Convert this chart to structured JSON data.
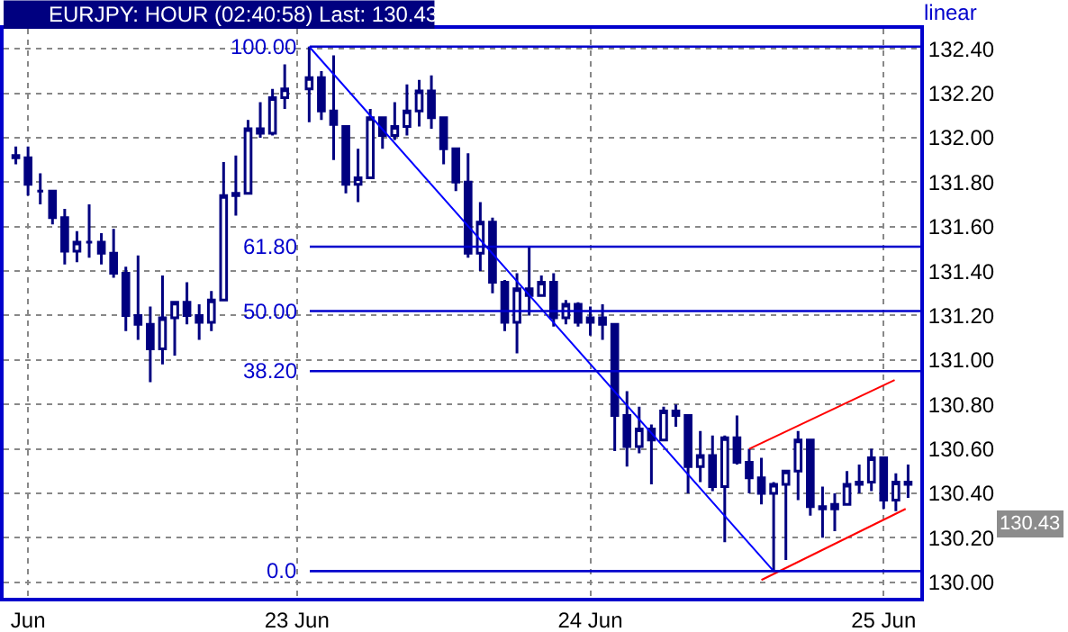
{
  "chart_data": {
    "type": "candlestick",
    "title": "EURJPY: HOUR (02:40:58) Last: 130.43",
    "annotations": [
      "linear",
      "130.43",
      "100.00",
      "61.80",
      "50.00",
      "38.20",
      "0.0"
    ],
    "xlim": [
      "--06-22T00:00",
      "--06-25T03:00"
    ],
    "xticks": [
      {
        "value": "--06-22T02:00",
        "label": "Jun"
      },
      {
        "value": "--06-23",
        "label": "23 Jun"
      },
      {
        "value": "--06-24",
        "label": "24 Jun"
      },
      {
        "value": "--06-25",
        "label": "25 Jun"
      }
    ],
    "ylim": [
      129.93,
      132.49
    ],
    "yticks": [
      {
        "value": 130.0,
        "label": "130.00"
      },
      {
        "value": 130.2,
        "label": "130.20"
      },
      {
        "value": 130.4,
        "label": "130.40"
      },
      {
        "value": 130.6,
        "label": "130.60"
      },
      {
        "value": 130.8,
        "label": "130.80"
      },
      {
        "value": 131.0,
        "label": "131.00"
      },
      {
        "value": 131.2,
        "label": "131.20"
      },
      {
        "value": 131.4,
        "label": "131.40"
      },
      {
        "value": 131.6,
        "label": "131.60"
      },
      {
        "value": 131.8,
        "label": "131.80"
      },
      {
        "value": 132.0,
        "label": "132.00"
      },
      {
        "value": 132.2,
        "label": "132.20"
      },
      {
        "value": 132.4,
        "label": "132.40"
      }
    ],
    "grid": true,
    "ref_lines": [
      {
        "axis": "y",
        "value": 132.41,
        "color": "#0000cc"
      },
      {
        "axis": "y",
        "value": 131.51,
        "color": "#0000cc"
      },
      {
        "axis": "y",
        "value": 131.22,
        "color": "#0000cc"
      },
      {
        "axis": "y",
        "value": 130.95,
        "color": "#0000cc"
      },
      {
        "axis": "y",
        "value": 130.05,
        "color": "#0000cc"
      }
    ],
    "series": [
      {
        "color": "#000080",
        "x": [
          "--06-22T01:00",
          "--06-22T02:00",
          "--06-22T03:00",
          "--06-22T04:00",
          "--06-22T05:00",
          "--06-22T06:00",
          "--06-22T07:00",
          "--06-22T08:00",
          "--06-22T09:00",
          "--06-22T10:00",
          "--06-22T11:00",
          "--06-22T12:00",
          "--06-22T13:00",
          "--06-22T14:00",
          "--06-22T15:00",
          "--06-22T16:00",
          "--06-22T17:00",
          "--06-22T18:00",
          "--06-22T19:00",
          "--06-22T20:00",
          "--06-22T21:00",
          "--06-22T22:00",
          "--06-22T23:00",
          "--06-23T01:00",
          "--06-23T02:00",
          "--06-23T03:00",
          "--06-23T04:00",
          "--06-23T05:00",
          "--06-23T06:00",
          "--06-23T07:00",
          "--06-23T08:00",
          "--06-23T09:00",
          "--06-23T10:00",
          "--06-23T11:00",
          "--06-23T12:00",
          "--06-23T13:00",
          "--06-23T14:00",
          "--06-23T15:00",
          "--06-23T16:00",
          "--06-23T17:00",
          "--06-23T18:00",
          "--06-23T19:00",
          "--06-23T20:00",
          "--06-23T21:00",
          "--06-23T22:00",
          "--06-23T23:00",
          "--06-24T00:00",
          "--06-24T01:00",
          "--06-24T02:00",
          "--06-24T03:00",
          "--06-24T04:00",
          "--06-24T05:00",
          "--06-24T06:00",
          "--06-24T07:00",
          "--06-24T08:00",
          "--06-24T09:00",
          "--06-24T10:00",
          "--06-24T11:00",
          "--06-24T12:00",
          "--06-24T13:00",
          "--06-24T14:00",
          "--06-24T15:00",
          "--06-24T16:00",
          "--06-24T17:00",
          "--06-24T18:00",
          "--06-24T19:00",
          "--06-24T20:00",
          "--06-24T21:00",
          "--06-24T22:00",
          "--06-24T23:00",
          "--06-25T00:00",
          "--06-25T01:00",
          "--06-25T02:00"
        ],
        "ohlc": [
          [
            131.92,
            131.96,
            131.88,
            131.91
          ],
          [
            131.91,
            131.96,
            131.74,
            131.79
          ],
          [
            131.76,
            131.84,
            131.7,
            131.76
          ],
          [
            131.76,
            131.76,
            131.61,
            131.64
          ],
          [
            131.64,
            131.68,
            131.43,
            131.49
          ],
          [
            131.49,
            131.58,
            131.44,
            131.53
          ],
          [
            131.53,
            131.7,
            131.46,
            131.53
          ],
          [
            131.53,
            131.57,
            131.43,
            131.48
          ],
          [
            131.48,
            131.59,
            131.37,
            131.39
          ],
          [
            131.39,
            131.42,
            131.13,
            131.2
          ],
          [
            131.2,
            131.47,
            131.09,
            131.16
          ],
          [
            131.16,
            131.24,
            130.9,
            131.05
          ],
          [
            131.05,
            131.38,
            130.98,
            131.19
          ],
          [
            131.19,
            131.26,
            131.02,
            131.26
          ],
          [
            131.26,
            131.35,
            131.16,
            131.2
          ],
          [
            131.2,
            131.25,
            131.09,
            131.17
          ],
          [
            131.17,
            131.31,
            131.13,
            131.27
          ],
          [
            131.27,
            131.89,
            131.27,
            131.74
          ],
          [
            131.74,
            131.92,
            131.65,
            131.75
          ],
          [
            131.75,
            132.08,
            131.75,
            132.04
          ],
          [
            132.04,
            132.16,
            132.0,
            132.02
          ],
          [
            132.02,
            132.22,
            132.01,
            132.18
          ],
          [
            132.18,
            132.33,
            132.13,
            132.22
          ],
          [
            132.22,
            132.41,
            132.07,
            132.27
          ],
          [
            132.27,
            132.3,
            132.08,
            132.12
          ],
          [
            132.12,
            132.37,
            131.9,
            132.06
          ],
          [
            132.05,
            132.05,
            131.75,
            131.79
          ],
          [
            131.79,
            131.95,
            131.71,
            131.82
          ],
          [
            131.82,
            132.13,
            131.82,
            132.09
          ],
          [
            132.09,
            132.09,
            131.95,
            132.01
          ],
          [
            132.01,
            132.16,
            131.99,
            132.05
          ],
          [
            132.05,
            132.24,
            132.01,
            132.12
          ],
          [
            132.12,
            132.26,
            132.05,
            132.21
          ],
          [
            132.21,
            132.28,
            132.04,
            132.09
          ],
          [
            132.09,
            132.09,
            131.88,
            131.95
          ],
          [
            131.95,
            131.95,
            131.76,
            131.8
          ],
          [
            131.8,
            131.93,
            131.46,
            131.48
          ],
          [
            131.48,
            131.71,
            131.4,
            131.62
          ],
          [
            131.62,
            131.64,
            131.3,
            131.35
          ],
          [
            131.35,
            131.36,
            131.13,
            131.17
          ],
          [
            131.17,
            131.39,
            131.03,
            131.32
          ],
          [
            131.32,
            131.51,
            131.2,
            131.29
          ],
          [
            131.29,
            131.38,
            131.29,
            131.35
          ],
          [
            131.35,
            131.39,
            131.15,
            131.19
          ],
          [
            131.19,
            131.27,
            131.16,
            131.25
          ],
          [
            131.25,
            131.26,
            131.15,
            131.17
          ],
          [
            131.17,
            131.24,
            131.11,
            131.19
          ],
          [
            131.19,
            131.25,
            131.09,
            131.16
          ],
          [
            131.16,
            131.16,
            130.59,
            130.75
          ],
          [
            130.75,
            130.86,
            130.52,
            130.61
          ],
          [
            130.61,
            130.79,
            130.58,
            130.69
          ],
          [
            130.69,
            130.71,
            130.44,
            130.64
          ],
          [
            130.64,
            130.79,
            130.64,
            130.77
          ],
          [
            130.77,
            130.8,
            130.7,
            130.75
          ],
          [
            130.75,
            130.75,
            130.4,
            130.52
          ],
          [
            130.52,
            130.68,
            130.45,
            130.57
          ],
          [
            130.57,
            130.66,
            130.41,
            130.43
          ],
          [
            130.43,
            130.66,
            130.18,
            130.65
          ],
          [
            130.65,
            130.75,
            130.53,
            130.54
          ],
          [
            130.54,
            130.6,
            130.4,
            130.47
          ],
          [
            130.47,
            130.56,
            130.35,
            130.4
          ],
          [
            130.4,
            130.45,
            130.05,
            130.44
          ],
          [
            130.44,
            130.5,
            130.1,
            130.5
          ],
          [
            130.5,
            130.68,
            130.37,
            130.64
          ],
          [
            130.64,
            130.64,
            130.3,
            130.34
          ],
          [
            130.34,
            130.43,
            130.2,
            130.33
          ],
          [
            130.33,
            130.4,
            130.23,
            130.35
          ],
          [
            130.35,
            130.5,
            130.35,
            130.44
          ],
          [
            130.44,
            130.53,
            130.4,
            130.45
          ],
          [
            130.45,
            130.6,
            130.41,
            130.56
          ],
          [
            130.56,
            130.56,
            130.33,
            130.37
          ],
          [
            130.37,
            130.49,
            130.32,
            130.45
          ],
          [
            130.45,
            130.53,
            130.38,
            130.44
          ]
        ]
      },
      {
        "type": "line",
        "color": "#0000ff",
        "x": [
          "--06-23T01:00",
          "--06-24T15:00"
        ],
        "values": [
          132.41,
          130.05
        ]
      },
      {
        "type": "line",
        "color": "#ff0000",
        "x": [
          "--06-24T13:00",
          "--06-25T00:54"
        ],
        "values": [
          130.6,
          130.91
        ]
      },
      {
        "type": "line",
        "color": "#ff0000",
        "x": [
          "--06-24T14:00",
          "--06-25T01:48"
        ],
        "values": [
          130.01,
          130.33
        ]
      }
    ]
  }
}
